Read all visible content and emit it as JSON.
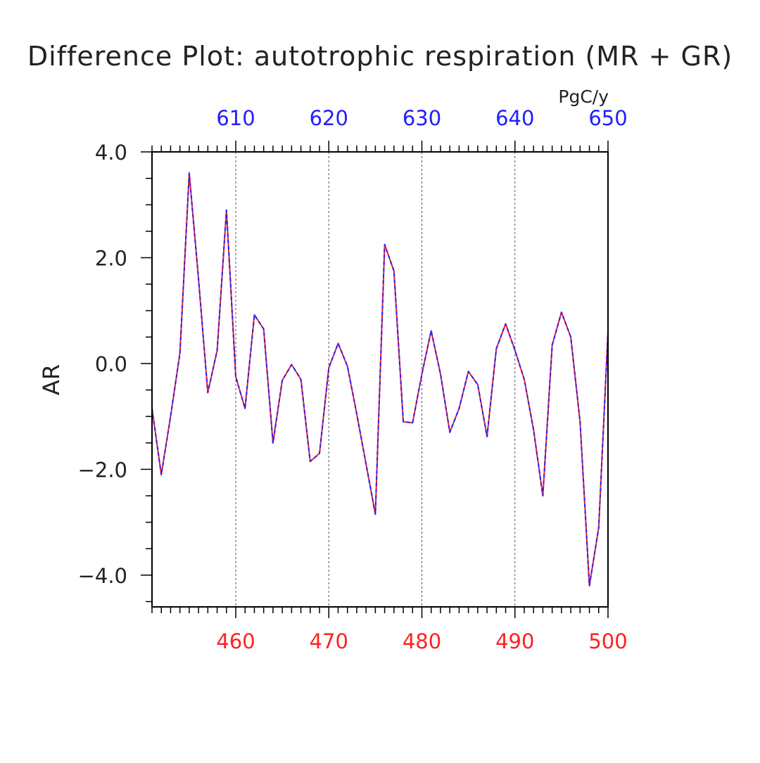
{
  "chart_data": {
    "type": "line",
    "title": "Difference Plot: autotrophic respiration (MR + GR)",
    "ylabel": "AR",
    "units": "PgC/y",
    "ylim": [
      -4.6,
      4.0
    ],
    "yticks": [
      -4.0,
      -2.0,
      0.0,
      2.0,
      4.0
    ],
    "ytick_labels": [
      "−4.0",
      "−2.0",
      "0.0",
      "2.0",
      "4.0"
    ],
    "bottom_axis": {
      "color": "#ff2020",
      "xlim": [
        451,
        500
      ],
      "ticks": [
        460,
        470,
        480,
        490,
        500
      ],
      "tick_labels": [
        "460",
        "470",
        "480",
        "490",
        "500"
      ]
    },
    "top_axis": {
      "color": "#2020ff",
      "xlim": [
        601,
        650
      ],
      "ticks": [
        610,
        620,
        630,
        640,
        650
      ],
      "tick_labels": [
        "610",
        "620",
        "630",
        "640",
        "650"
      ]
    },
    "grid": "vertical dashed at major ticks",
    "x": [
      451,
      452,
      453,
      454,
      455,
      456,
      457,
      458,
      459,
      460,
      461,
      462,
      463,
      464,
      465,
      466,
      467,
      468,
      469,
      470,
      471,
      472,
      473,
      474,
      475,
      476,
      477,
      478,
      479,
      480,
      481,
      482,
      483,
      484,
      485,
      486,
      487,
      488,
      489,
      490,
      491,
      492,
      493,
      494,
      495,
      496,
      497,
      498,
      499,
      500
    ],
    "series": [
      {
        "color": "#ff2020",
        "style": "solid",
        "values": [
          -0.85,
          -2.1,
          -1.0,
          0.2,
          3.6,
          1.6,
          -0.55,
          0.25,
          2.9,
          -0.25,
          -0.85,
          0.92,
          0.65,
          -1.5,
          -0.32,
          -0.02,
          -0.3,
          -1.85,
          -1.7,
          -0.08,
          0.38,
          -0.05,
          -0.95,
          -1.9,
          -2.85,
          2.25,
          1.75,
          -1.1,
          -1.12,
          -0.2,
          0.62,
          -0.2,
          -1.3,
          -0.85,
          -0.15,
          -0.4,
          -1.38,
          0.28,
          0.75,
          0.25,
          -0.3,
          -1.25,
          -2.5,
          0.35,
          0.97,
          0.5,
          -1.1,
          -4.2,
          -3.1,
          0.6
        ]
      },
      {
        "color": "#2020ff",
        "style": "dashed",
        "values": [
          -0.85,
          -2.1,
          -1.0,
          0.2,
          3.6,
          1.6,
          -0.55,
          0.25,
          2.9,
          -0.25,
          -0.85,
          0.92,
          0.65,
          -1.5,
          -0.32,
          -0.02,
          -0.3,
          -1.85,
          -1.7,
          -0.08,
          0.38,
          -0.05,
          -0.95,
          -1.9,
          -2.85,
          2.25,
          1.75,
          -1.1,
          -1.12,
          -0.2,
          0.62,
          -0.2,
          -1.3,
          -0.85,
          -0.15,
          -0.4,
          -1.38,
          0.28,
          0.75,
          0.25,
          -0.3,
          -1.25,
          -2.5,
          0.35,
          0.97,
          0.5,
          -1.1,
          -4.2,
          -3.1,
          0.6
        ]
      }
    ]
  }
}
